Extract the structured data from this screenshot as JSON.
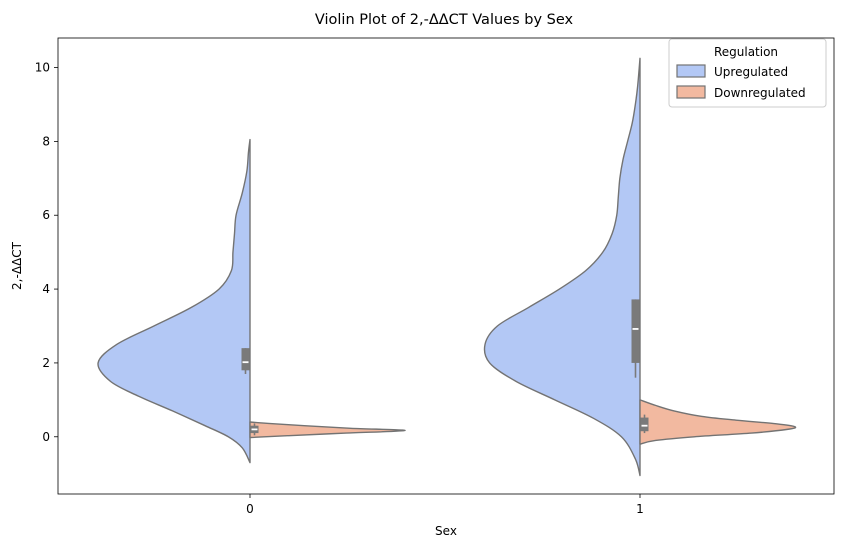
{
  "chart_data": {
    "type": "violin",
    "title": "Violin Plot of 2,-ΔΔCT Values by Sex",
    "xlabel": "Sex",
    "ylabel": "2,-ΔΔCT",
    "categories": [
      "0",
      "1"
    ],
    "ylim": [
      -1.55,
      10.8
    ],
    "yticks": [
      0,
      2,
      4,
      6,
      8,
      10
    ],
    "split": true,
    "legend": {
      "title": "Regulation",
      "position": "top-right",
      "entries": [
        {
          "label": "Upregulated",
          "color": "#b3c8f5"
        },
        {
          "label": "Downregulated",
          "color": "#f2b9a0"
        }
      ]
    },
    "edge_color": "#737373",
    "box_color": "#7a7a7a",
    "series": [
      {
        "name": "Upregulated",
        "side": "left",
        "color": "#b3c8f5",
        "violins": [
          {
            "category": "0",
            "ymin": -0.7,
            "ymax": 8.05,
            "profile": [
              [
                -0.7,
                0.0
              ],
              [
                -0.3,
                0.05
              ],
              [
                0.0,
                0.14
              ],
              [
                0.3,
                0.29
              ],
              [
                0.7,
                0.5
              ],
              [
                1.1,
                0.72
              ],
              [
                1.5,
                0.9
              ],
              [
                2.0,
                0.98
              ],
              [
                2.5,
                0.86
              ],
              [
                3.0,
                0.62
              ],
              [
                3.5,
                0.38
              ],
              [
                4.0,
                0.2
              ],
              [
                4.5,
                0.12
              ],
              [
                5.0,
                0.11
              ],
              [
                5.5,
                0.1
              ],
              [
                6.0,
                0.09
              ],
              [
                6.6,
                0.05
              ],
              [
                7.2,
                0.02
              ],
              [
                7.7,
                0.01
              ],
              [
                8.05,
                0.0
              ]
            ],
            "box": {
              "q1": 1.8,
              "median": 2.02,
              "q3": 2.4,
              "whisker_low": 1.7,
              "whisker_high": 2.4
            }
          },
          {
            "category": "1",
            "ymin": -1.05,
            "ymax": 10.25,
            "profile": [
              [
                -1.05,
                0.0
              ],
              [
                -0.6,
                0.03
              ],
              [
                0.0,
                0.12
              ],
              [
                0.5,
                0.3
              ],
              [
                1.0,
                0.55
              ],
              [
                1.5,
                0.8
              ],
              [
                2.0,
                0.97
              ],
              [
                2.5,
                1.0
              ],
              [
                3.0,
                0.92
              ],
              [
                3.5,
                0.72
              ],
              [
                4.0,
                0.52
              ],
              [
                4.5,
                0.35
              ],
              [
                5.0,
                0.24
              ],
              [
                5.5,
                0.18
              ],
              [
                6.0,
                0.15
              ],
              [
                6.5,
                0.14
              ],
              [
                7.0,
                0.13
              ],
              [
                7.5,
                0.11
              ],
              [
                8.0,
                0.08
              ],
              [
                8.5,
                0.05
              ],
              [
                9.0,
                0.03
              ],
              [
                9.5,
                0.015
              ],
              [
                10.25,
                0.0
              ]
            ],
            "box": {
              "q1": 2.0,
              "median": 2.92,
              "q3": 3.72,
              "whisker_low": 1.6,
              "whisker_high": 3.72
            }
          }
        ]
      },
      {
        "name": "Downregulated",
        "side": "right",
        "color": "#f2b9a0",
        "violins": [
          {
            "category": "0",
            "ymin": -0.02,
            "ymax": 0.4,
            "profile": [
              [
                -0.02,
                0.0
              ],
              [
                0.03,
                0.25
              ],
              [
                0.1,
                0.62
              ],
              [
                0.17,
                1.0
              ],
              [
                0.23,
                0.65
              ],
              [
                0.3,
                0.35
              ],
              [
                0.36,
                0.12
              ],
              [
                0.4,
                0.0
              ]
            ],
            "box": {
              "q1": 0.1,
              "median": 0.2,
              "q3": 0.3,
              "whisker_low": 0.04,
              "whisker_high": 0.36
            }
          },
          {
            "category": "1",
            "ymin": -0.2,
            "ymax": 1.0,
            "profile": [
              [
                -0.2,
                0.0
              ],
              [
                -0.1,
                0.1
              ],
              [
                0.0,
                0.35
              ],
              [
                0.1,
                0.72
              ],
              [
                0.2,
                0.95
              ],
              [
                0.27,
                1.0
              ],
              [
                0.35,
                0.88
              ],
              [
                0.45,
                0.62
              ],
              [
                0.55,
                0.4
              ],
              [
                0.7,
                0.22
              ],
              [
                0.85,
                0.1
              ],
              [
                1.0,
                0.0
              ]
            ],
            "box": {
              "q1": 0.15,
              "median": 0.3,
              "q3": 0.52,
              "whisker_low": 0.1,
              "whisker_high": 0.6
            }
          }
        ]
      }
    ]
  }
}
